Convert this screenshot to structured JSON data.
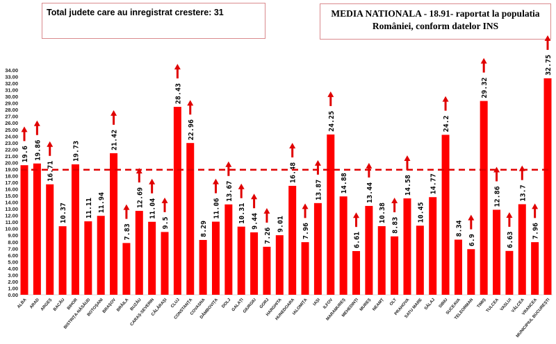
{
  "header": {
    "total_label": "Total judete care au inregistrat crestere: 31",
    "national_line1": "MEDIA NATIONALA - 18.91-  raportat la populatia",
    "national_line2": "României, conform datelor INS"
  },
  "colors": {
    "bar": "#ff0000",
    "arrow": "#e00000",
    "average_line": "#e00000"
  },
  "chart_data": {
    "type": "bar",
    "title": "",
    "xlabel": "",
    "ylabel": "",
    "ylim": [
      0,
      34
    ],
    "ytick_step": 1,
    "average": 18.91,
    "categories": [
      "ALBA",
      "ARAD",
      "ARGEȘ",
      "BACĂU",
      "BIHOR",
      "BISTRIȚA-NĂSĂUD",
      "BOTOȘANI",
      "BRAȘOV",
      "BRĂILA",
      "BUZĂU",
      "CARAȘ-SEVERIN",
      "CĂLĂRAȘI",
      "CLUJ",
      "CONSTANȚA",
      "COVASNA",
      "DÂMBOVIȚA",
      "DOLJ",
      "GALAȚI",
      "GIURGIU",
      "GORJ",
      "HARGHITA",
      "HUNEDOARA",
      "IALOMIȚA",
      "IAȘI",
      "ILFOV",
      "MARAMUREȘ",
      "MEHEDINȚI",
      "MUREȘ",
      "NEAMȚ",
      "OLT",
      "PRAHOVA",
      "SATU MARE",
      "SĂLAJ",
      "SIBIU",
      "SUCEAVA",
      "TELEORMAN",
      "TIMIȘ",
      "TULCEA",
      "VASLUI",
      "VÂLCEA",
      "VRANCEA",
      "MUNICIPIUL BUCUREȘTI"
    ],
    "values": [
      19.6,
      19.86,
      16.71,
      10.37,
      19.73,
      11.11,
      11.94,
      21.42,
      7.83,
      12.69,
      11.04,
      9.5,
      28.43,
      22.96,
      8.29,
      11.06,
      13.67,
      10.31,
      9.44,
      7.26,
      9.01,
      16.48,
      7.96,
      13.87,
      24.25,
      14.88,
      6.61,
      13.44,
      10.38,
      8.83,
      14.58,
      10.45,
      14.77,
      24.2,
      8.34,
      6.9,
      29.32,
      12.86,
      6.63,
      13.7,
      7.96,
      32.75
    ],
    "increase": [
      true,
      true,
      true,
      false,
      false,
      false,
      false,
      true,
      true,
      true,
      true,
      true,
      true,
      true,
      false,
      true,
      true,
      true,
      true,
      true,
      false,
      true,
      true,
      true,
      true,
      false,
      true,
      true,
      false,
      true,
      true,
      false,
      false,
      true,
      false,
      true,
      true,
      true,
      true,
      true,
      true,
      true
    ]
  }
}
